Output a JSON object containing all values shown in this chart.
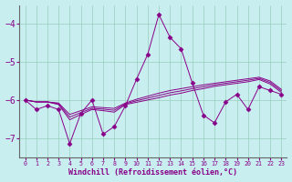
{
  "x": [
    0,
    1,
    2,
    3,
    4,
    5,
    6,
    7,
    8,
    9,
    10,
    11,
    12,
    13,
    14,
    15,
    16,
    17,
    18,
    19,
    20,
    21,
    22,
    23
  ],
  "line_data": [
    -6.0,
    -6.25,
    -6.15,
    -6.25,
    -7.15,
    -6.35,
    -6.0,
    -6.9,
    -6.7,
    -6.15,
    -5.45,
    -4.8,
    -3.75,
    -4.35,
    -4.65,
    -5.55,
    -6.4,
    -6.6,
    -6.05,
    -5.85,
    -6.25,
    -5.65,
    -5.75,
    -5.85
  ],
  "trend1": [
    -6.0,
    -6.05,
    -6.05,
    -6.08,
    -6.38,
    -6.28,
    -6.18,
    -6.2,
    -6.22,
    -6.08,
    -5.98,
    -5.9,
    -5.82,
    -5.75,
    -5.7,
    -5.65,
    -5.6,
    -5.56,
    -5.52,
    -5.48,
    -5.44,
    -5.4,
    -5.5,
    -5.72
  ],
  "trend2": [
    -6.0,
    -6.05,
    -6.05,
    -6.1,
    -6.45,
    -6.33,
    -6.22,
    -6.24,
    -6.27,
    -6.1,
    -6.02,
    -5.95,
    -5.88,
    -5.81,
    -5.76,
    -5.7,
    -5.65,
    -5.6,
    -5.56,
    -5.52,
    -5.48,
    -5.43,
    -5.54,
    -5.76
  ],
  "trend3": [
    -6.0,
    -6.05,
    -6.05,
    -6.12,
    -6.52,
    -6.38,
    -6.25,
    -6.28,
    -6.32,
    -6.12,
    -6.06,
    -6.0,
    -5.94,
    -5.87,
    -5.82,
    -5.75,
    -5.7,
    -5.64,
    -5.6,
    -5.56,
    -5.52,
    -5.46,
    -5.58,
    -5.8
  ],
  "ylim": [
    -7.5,
    -3.5
  ],
  "yticks": [
    -7,
    -6,
    -5,
    -4
  ],
  "xlim": [
    -0.5,
    23.5
  ],
  "xlabel": "Windchill (Refroidissement éolien,°C)",
  "line_color": "#880088",
  "bg_color": "#c8eef0",
  "grid_color": "#99ccbb",
  "marker": "D",
  "markersize": 2.5
}
